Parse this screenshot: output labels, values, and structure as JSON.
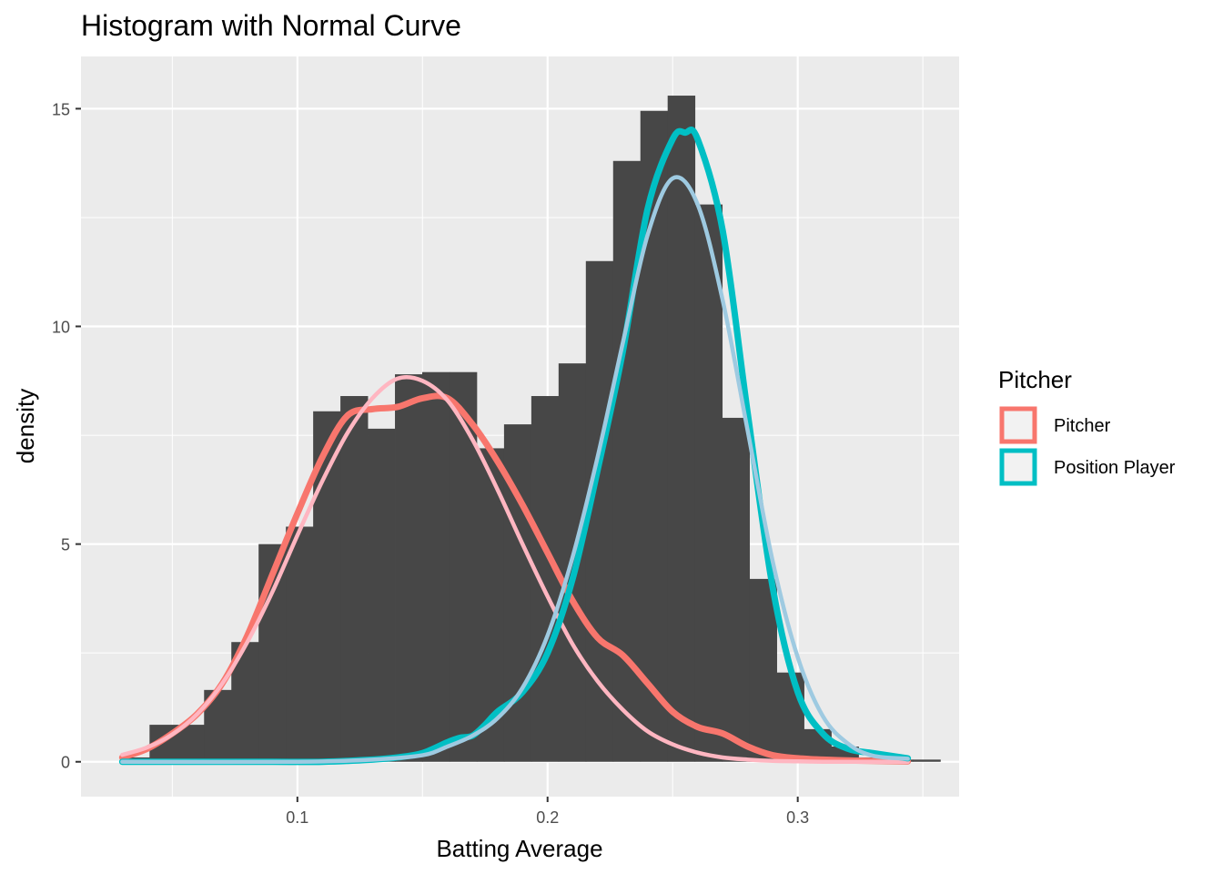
{
  "chart_data": {
    "type": "histogram",
    "title": "Histogram with Normal Curve",
    "xlabel": "Batting Average",
    "ylabel": "density",
    "xlim": [
      0.0135,
      0.3645
    ],
    "ylim": [
      -0.8,
      16.2
    ],
    "x_ticks": [
      0.1,
      0.2,
      0.3
    ],
    "x_tick_labels": [
      "0.1",
      "0.2",
      "0.3"
    ],
    "y_ticks": [
      0,
      5,
      10,
      15
    ],
    "y_tick_labels": [
      "0",
      "5",
      "10",
      "15"
    ],
    "grid": true,
    "legend": {
      "title": "Pitcher",
      "position": "right",
      "entries": [
        {
          "label": "Pitcher",
          "color": "#F8766D"
        },
        {
          "label": "Position Player",
          "color": "#00BFC4"
        }
      ]
    },
    "histogram": {
      "bin_width": 0.0109,
      "bin_start": 0.03,
      "bar_color": "#474747",
      "values": [
        0.1,
        0.85,
        0.85,
        1.65,
        2.75,
        5.0,
        5.4,
        8.05,
        8.4,
        7.65,
        8.9,
        8.95,
        8.95,
        7.2,
        7.75,
        8.4,
        9.15,
        11.5,
        13.8,
        14.95,
        15.3,
        12.8,
        7.9,
        4.2,
        2.05,
        0.75,
        0.35,
        0.1,
        0.05,
        0.05
      ]
    },
    "series": [
      {
        "name": "Pitcher",
        "kind": "density",
        "color": "#F8766D",
        "x": [
          0.03,
          0.04,
          0.05,
          0.06,
          0.07,
          0.08,
          0.09,
          0.1,
          0.11,
          0.12,
          0.13,
          0.14,
          0.15,
          0.16,
          0.17,
          0.18,
          0.19,
          0.2,
          0.21,
          0.22,
          0.23,
          0.24,
          0.25,
          0.26,
          0.27,
          0.28,
          0.29,
          0.3,
          0.31,
          0.32,
          0.33,
          0.344
        ],
        "y": [
          0.1,
          0.3,
          0.65,
          1.1,
          1.8,
          2.9,
          4.3,
          5.7,
          7.0,
          7.95,
          8.1,
          8.15,
          8.35,
          8.35,
          7.75,
          6.9,
          5.9,
          4.8,
          3.7,
          2.85,
          2.45,
          1.8,
          1.15,
          0.8,
          0.65,
          0.35,
          0.15,
          0.08,
          0.05,
          0.03,
          0.02,
          0.01
        ]
      },
      {
        "name": "",
        "kind": "normal",
        "color": "#FFB6C1",
        "x": [
          0.03,
          0.04,
          0.05,
          0.06,
          0.07,
          0.08,
          0.09,
          0.1,
          0.11,
          0.12,
          0.13,
          0.14,
          0.15,
          0.16,
          0.17,
          0.18,
          0.19,
          0.2,
          0.21,
          0.22,
          0.23,
          0.24,
          0.25,
          0.26,
          0.27,
          0.28,
          0.29,
          0.3,
          0.31,
          0.32,
          0.33,
          0.344
        ],
        "y": [
          0.16,
          0.33,
          0.63,
          1.1,
          1.8,
          2.75,
          3.9,
          5.2,
          6.45,
          7.55,
          8.35,
          8.8,
          8.75,
          8.3,
          7.4,
          6.25,
          5.0,
          3.8,
          2.7,
          1.85,
          1.2,
          0.7,
          0.4,
          0.21,
          0.1,
          0.05,
          0.02,
          0.01,
          0.0,
          0.0,
          0.0,
          0.0
        ]
      },
      {
        "name": "Position Player",
        "kind": "density",
        "color": "#00BFC4",
        "x": [
          0.03,
          0.05,
          0.07,
          0.09,
          0.11,
          0.13,
          0.14,
          0.15,
          0.16,
          0.165,
          0.17,
          0.175,
          0.18,
          0.19,
          0.2,
          0.21,
          0.22,
          0.23,
          0.24,
          0.25,
          0.255,
          0.26,
          0.27,
          0.28,
          0.29,
          0.3,
          0.31,
          0.32,
          0.33,
          0.344
        ],
        "y": [
          0.0,
          0.0,
          0.0,
          0.0,
          0.0,
          0.05,
          0.1,
          0.2,
          0.45,
          0.55,
          0.6,
          0.85,
          1.15,
          1.6,
          2.5,
          4.2,
          6.7,
          9.4,
          12.7,
          14.3,
          14.45,
          14.3,
          12.2,
          8.0,
          4.0,
          1.6,
          0.65,
          0.3,
          0.2,
          0.08
        ]
      },
      {
        "name": "",
        "kind": "normal",
        "color": "#9ECAE1",
        "x": [
          0.03,
          0.1,
          0.13,
          0.15,
          0.16,
          0.17,
          0.18,
          0.19,
          0.2,
          0.21,
          0.22,
          0.23,
          0.24,
          0.25,
          0.26,
          0.27,
          0.28,
          0.29,
          0.3,
          0.31,
          0.32,
          0.33,
          0.344
        ],
        "y": [
          0.0,
          0.0,
          0.05,
          0.15,
          0.35,
          0.6,
          1.0,
          1.7,
          2.9,
          4.7,
          7.0,
          9.6,
          12.1,
          13.4,
          12.8,
          10.6,
          7.6,
          4.6,
          2.4,
          1.05,
          0.42,
          0.14,
          0.07
        ]
      }
    ]
  }
}
